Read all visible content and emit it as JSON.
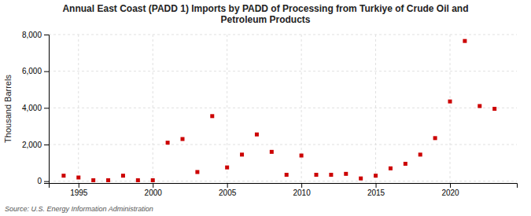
{
  "chart_data": {
    "type": "scatter",
    "title": "Annual East Coast (PADD 1) Imports by PADD of Processing from Turkiye of Crude Oil and\nPetroleum Products",
    "ylabel": "Thousand Barrels",
    "source": "Source: U.S. Energy Information Administration",
    "x": [
      1994,
      1995,
      1996,
      1997,
      1998,
      1999,
      2000,
      2001,
      2002,
      2003,
      2004,
      2005,
      2006,
      2007,
      2008,
      2009,
      2010,
      2011,
      2012,
      2013,
      2014,
      2015,
      2016,
      2017,
      2018,
      2019,
      2020,
      2021,
      2022,
      2023
    ],
    "values": [
      300,
      200,
      50,
      50,
      300,
      50,
      50,
      2100,
      2300,
      500,
      3550,
      750,
      1450,
      2550,
      1600,
      350,
      1400,
      350,
      350,
      400,
      150,
      300,
      700,
      950,
      1450,
      2350,
      4350,
      7650,
      4100,
      3950
    ],
    "color": "#cc0000",
    "marker": "square",
    "xlim": [
      1993.0,
      2024.5
    ],
    "ylim": [
      -100,
      8000
    ],
    "xticks": [
      1995,
      2000,
      2005,
      2010,
      2015,
      2020
    ],
    "yticks": [
      0,
      {
        "value": 2000,
        "label": "2,000"
      },
      {
        "value": 4000,
        "label": "4,000"
      },
      {
        "value": 6000,
        "label": "6,000"
      },
      {
        "value": 8000,
        "label": "8,000"
      }
    ],
    "grid": true
  }
}
